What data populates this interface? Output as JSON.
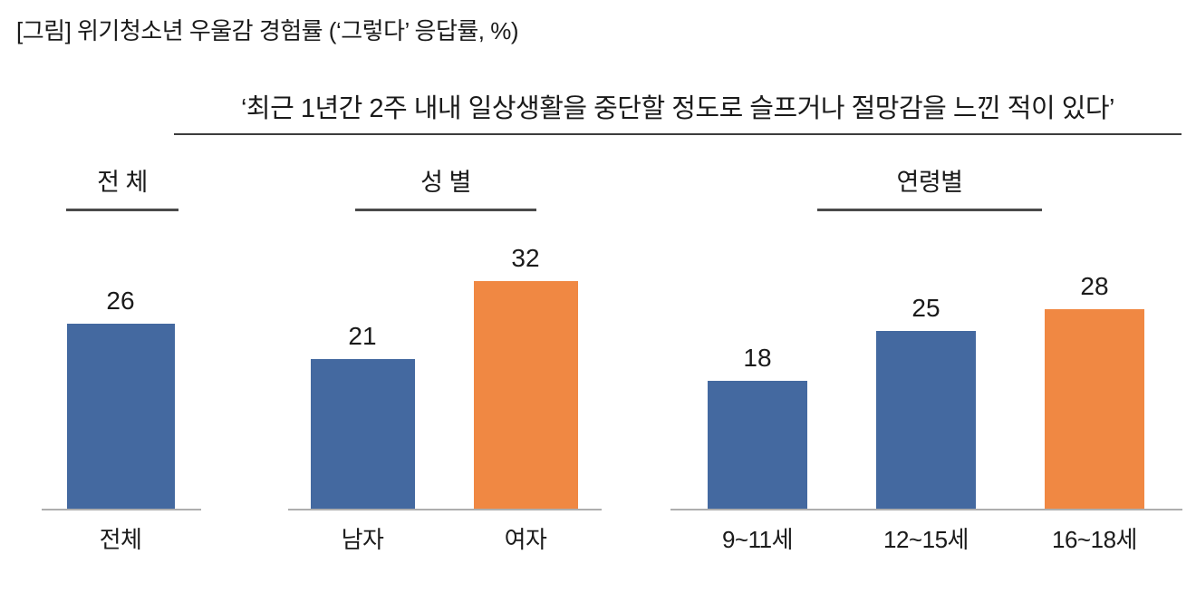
{
  "title": "[그림] 위기청소년 우울감 경험률 (‘그렇다’ 응답률, %)",
  "subtitle": "‘최근 1년간 2주 내내 일상생활을 중단할 정도로 슬프거나 절망감을 느낀 적이 있다’",
  "colors": {
    "bar_blue": "#4469A0",
    "bar_orange": "#F08843",
    "axis_line": "#AEAEAE",
    "header_underline": "#4A4A4A",
    "text": "#1A1A1A"
  },
  "chart_data": {
    "type": "bar",
    "title": "위기청소년 우울감 경험률 (‘그렇다’ 응답률, %)",
    "unit": "%",
    "ylim": [
      0,
      35
    ],
    "grid": false,
    "legend": "none",
    "value_labels": "above-bars",
    "groups": [
      {
        "header": "전  체",
        "bars": [
          {
            "label": "전체",
            "value": 26,
            "color": "#4469A0"
          }
        ]
      },
      {
        "header": "성  별",
        "bars": [
          {
            "label": "남자",
            "value": 21,
            "color": "#4469A0"
          },
          {
            "label": "여자",
            "value": 32,
            "color": "#F08843"
          }
        ]
      },
      {
        "header": "연령별",
        "bars": [
          {
            "label": "9~11세",
            "value": 18,
            "color": "#4469A0"
          },
          {
            "label": "12~15세",
            "value": 25,
            "color": "#4469A0"
          },
          {
            "label": "16~18세",
            "value": 28,
            "color": "#F08843"
          }
        ]
      }
    ]
  }
}
